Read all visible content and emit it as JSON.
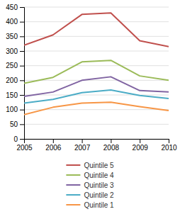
{
  "chart_data": {
    "type": "line",
    "x": [
      2005,
      2006,
      2007,
      2008,
      2009,
      2010
    ],
    "series": [
      {
        "name": "Quintile 5",
        "color": "#C0504D",
        "values": [
          320,
          355,
          425,
          430,
          335,
          315
        ]
      },
      {
        "name": "Quintile 4",
        "color": "#9BBB59",
        "values": [
          190,
          210,
          263,
          268,
          215,
          200
        ]
      },
      {
        "name": "Quintile 3",
        "color": "#8064A2",
        "values": [
          145,
          160,
          200,
          212,
          165,
          160
        ]
      },
      {
        "name": "Quintile 2",
        "color": "#4BACC6",
        "values": [
          122,
          135,
          158,
          167,
          148,
          138
        ]
      },
      {
        "name": "Quintile 1",
        "color": "#F79646",
        "values": [
          83,
          108,
          122,
          125,
          110,
          97
        ]
      }
    ],
    "xlim": [
      2005,
      2010
    ],
    "xticks": [
      2005,
      2006,
      2007,
      2008,
      2009,
      2010
    ],
    "ylim": [
      0,
      450
    ],
    "yticks": [
      0,
      50,
      100,
      150,
      200,
      250,
      300,
      350,
      400,
      450
    ],
    "grid": true,
    "legend": "bottom"
  }
}
